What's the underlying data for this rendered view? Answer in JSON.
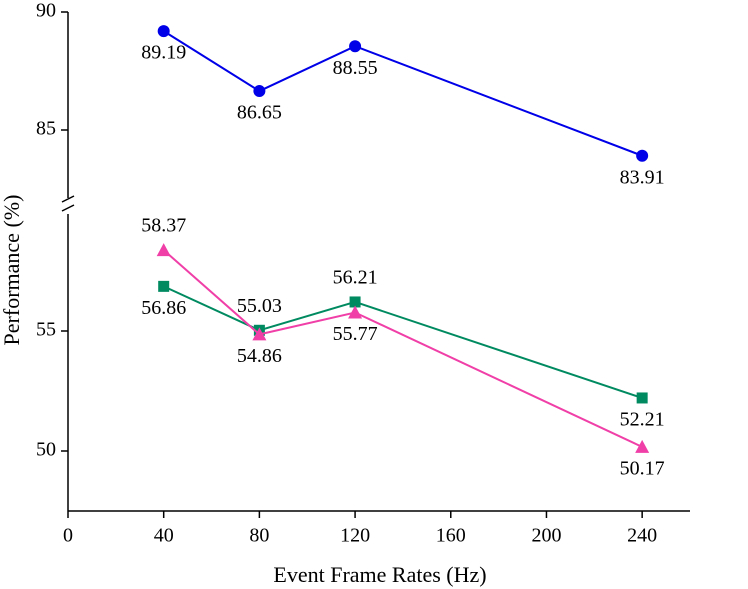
{
  "chart_data": {
    "type": "line",
    "x_label": "Event Frame Rates (Hz)",
    "y_label": "Performance (%)",
    "x": [
      40,
      80,
      120,
      240
    ],
    "xlim": [
      0,
      260
    ],
    "xticks": [
      0,
      40,
      80,
      120,
      160,
      200,
      240
    ],
    "panels": [
      {
        "ylim": [
          82,
          90
        ],
        "yticks": [
          85,
          90
        ]
      },
      {
        "ylim": [
          47.5,
          60
        ],
        "yticks": [
          50,
          55
        ]
      }
    ],
    "series": [
      {
        "color": "#0000e8",
        "marker": "circle",
        "panel": 0,
        "values": [
          89.19,
          86.65,
          88.55,
          83.91
        ]
      },
      {
        "color": "#008a60",
        "marker": "square",
        "panel": 1,
        "values": [
          56.86,
          55.03,
          56.21,
          52.21
        ]
      },
      {
        "color": "#f040a8",
        "marker": "triangle",
        "panel": 1,
        "values": [
          58.37,
          54.86,
          55.77,
          50.17
        ]
      }
    ]
  }
}
